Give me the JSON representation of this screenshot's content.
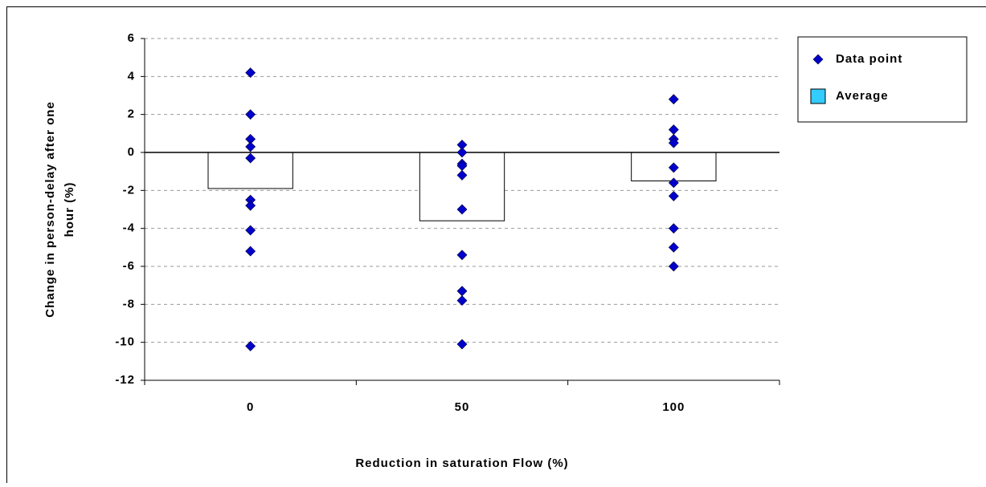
{
  "chart_data": {
    "type": "bar",
    "ylabel": [
      "Change in person-delay after one",
      "hour (%)"
    ],
    "xlabel": "Reduction in saturation Flow (%)",
    "categories": [
      "0",
      "50",
      "100"
    ],
    "series": [
      {
        "name": "Data point",
        "type": "scatter",
        "color": "#0000cc",
        "values": [
          [
            4.2,
            2.0,
            0.7,
            0.3,
            -0.3,
            -2.5,
            -2.8,
            -4.1,
            -5.2,
            -10.2
          ],
          [
            0.4,
            0.0,
            -0.6,
            -0.7,
            -1.2,
            -3.0,
            -5.4,
            -7.3,
            -7.8,
            -10.1
          ],
          [
            2.8,
            1.2,
            0.7,
            0.5,
            -0.8,
            -1.6,
            -2.3,
            -4.0,
            -5.0,
            -6.0
          ]
        ]
      },
      {
        "name": "Average",
        "type": "bar",
        "color": "#33ccff",
        "fill": "#ffffff",
        "values": [
          -1.9,
          -3.6,
          -1.5
        ]
      }
    ],
    "ylim": [
      -12,
      6
    ],
    "yticks": [
      -12,
      -10,
      -8,
      -6,
      -4,
      -2,
      0,
      2,
      4,
      6
    ],
    "grid": true,
    "legend": "right"
  }
}
